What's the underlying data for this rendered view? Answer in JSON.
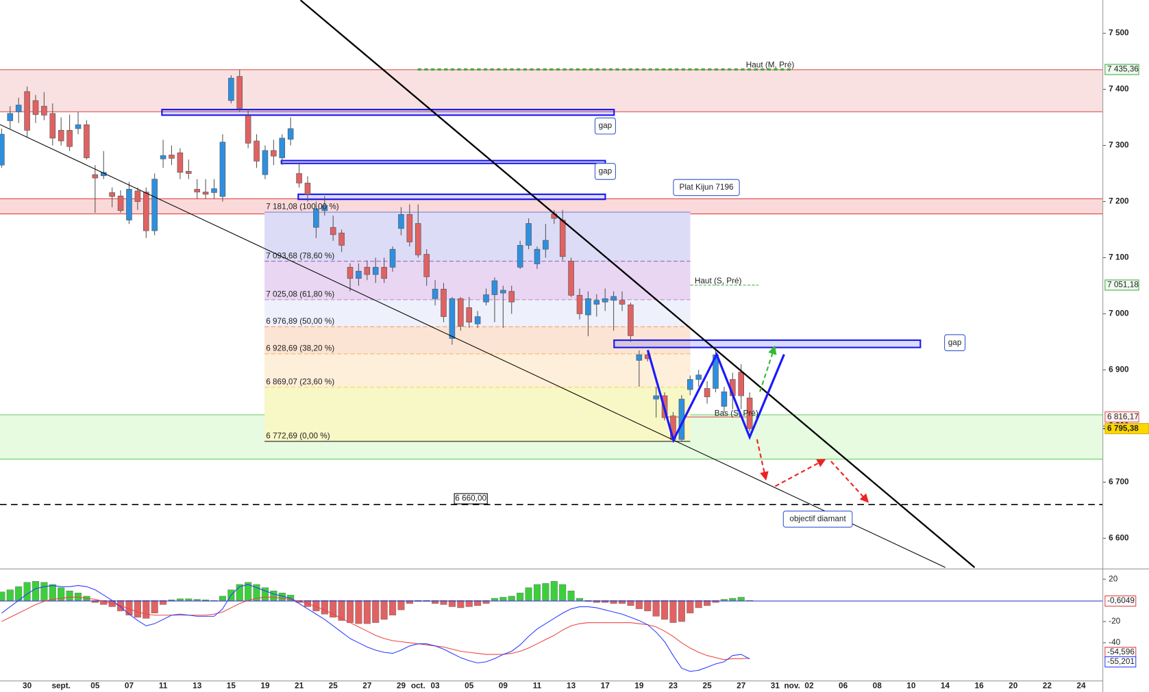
{
  "chart_data": {
    "type": "candlestick",
    "categories": [
      null,
      null,
      null,
      "30",
      null,
      null,
      null,
      "sept.",
      null,
      null,
      null,
      "05",
      null,
      null,
      null,
      "07",
      null,
      null,
      null,
      "11",
      null,
      null,
      null,
      "13",
      null,
      null,
      null,
      "15",
      null,
      null,
      null,
      "19",
      null,
      null,
      null,
      "21",
      null,
      null,
      null,
      "25",
      null,
      null,
      null,
      "27",
      null,
      null,
      null,
      "29",
      null,
      "oct.",
      null,
      "03",
      null,
      null,
      null,
      "05",
      null,
      null,
      null,
      "09",
      null,
      null,
      null,
      "11",
      null,
      null,
      null,
      "13",
      null,
      null,
      null,
      "17",
      null,
      null,
      null,
      "19",
      null,
      null,
      null,
      "23",
      null,
      null,
      null,
      "25",
      null,
      null,
      null,
      "27",
      null,
      null,
      null,
      "31",
      null,
      "nov.",
      null,
      "02",
      null,
      null,
      null,
      "06",
      null,
      null,
      null,
      "08",
      null,
      null,
      null,
      "10",
      null,
      null,
      null,
      "14",
      null,
      null,
      null,
      "16",
      null,
      null,
      null,
      "20",
      null,
      null,
      null,
      "22",
      null,
      null,
      null,
      "24",
      null,
      null
    ],
    "open": [
      7265,
      7344,
      7360,
      7396,
      7380,
      7370,
      7357,
      7327,
      7327,
      7330,
      7337,
      7248,
      7246,
      7216,
      7210,
      7167,
      7219,
      7217,
      7148,
      7276,
      7283,
      7287,
      7254,
      7222,
      7217,
      7216,
      7209,
      7380,
      7423,
      7353,
      7308,
      7248,
      7291,
      7278,
      7311,
      7250,
      7233,
      7154,
      7184,
      7154,
      7144,
      7083,
      7063,
      7083,
      7070,
      7083,
      7083,
      7152,
      7177,
      7161,
      7106,
      7027,
      7044,
      6956,
      7027,
      7011,
      6982,
      7021,
      7034,
      7037,
      7040,
      7083,
      7122,
      7089,
      7115,
      7178,
      7167,
      7094,
      7033,
      6998,
      7017,
      7021,
      7024,
      7024,
      7016,
      6917,
      6927,
      6848,
      6854,
      6818,
      6776,
      6865,
      6883,
      6867,
      6867,
      6835,
      6883,
      6896,
      6850,
      null,
      null,
      null,
      null,
      null,
      null,
      null,
      null,
      null,
      null,
      null,
      null,
      null,
      null,
      null,
      null,
      null,
      null,
      null,
      null,
      null,
      null,
      null,
      null,
      null,
      null,
      null,
      null,
      null,
      null,
      null,
      null,
      null,
      null,
      null,
      null,
      null,
      null,
      null,
      null,
      null
    ],
    "high": [
      7330,
      7370,
      7385,
      7405,
      7390,
      7395,
      7375,
      7350,
      7355,
      7360,
      7345,
      7265,
      7290,
      7225,
      7220,
      7235,
      7225,
      7225,
      7250,
      7310,
      7300,
      7295,
      7275,
      7240,
      7240,
      7240,
      7320,
      7425,
      7435,
      7365,
      7320,
      7300,
      7310,
      7320,
      7350,
      7270,
      7245,
      7200,
      7210,
      7175,
      7150,
      7090,
      7090,
      7095,
      7100,
      7100,
      7120,
      7190,
      7195,
      7195,
      7115,
      7060,
      7055,
      7030,
      7030,
      7030,
      7005,
      7045,
      7065,
      7050,
      7050,
      7130,
      7170,
      7120,
      7160,
      7185,
      7185,
      7100,
      7045,
      7040,
      7035,
      7045,
      7040,
      7040,
      7020,
      6935,
      6935,
      6870,
      6860,
      6825,
      6855,
      6890,
      6900,
      6880,
      6935,
      6870,
      6895,
      6910,
      6860,
      null,
      null,
      null,
      null,
      null,
      null,
      null,
      null,
      null,
      null,
      null,
      null,
      null,
      null,
      null,
      null,
      null,
      null,
      null,
      null,
      null,
      null,
      null,
      null,
      null,
      null,
      null,
      null,
      null,
      null,
      null,
      null,
      null,
      null,
      null,
      null,
      null,
      null,
      null,
      null,
      null
    ],
    "low": [
      7260,
      7330,
      7340,
      7315,
      7340,
      7345,
      7300,
      7300,
      7290,
      7320,
      7275,
      7180,
      7240,
      7190,
      7180,
      7160,
      7185,
      7135,
      7140,
      7260,
      7265,
      7240,
      7240,
      7205,
      7205,
      7205,
      7200,
      7375,
      7360,
      7295,
      7260,
      7240,
      7265,
      7265,
      7300,
      7225,
      7200,
      7135,
      7175,
      7130,
      7110,
      7040,
      7050,
      7060,
      7055,
      7055,
      7075,
      7140,
      7120,
      7100,
      7050,
      7015,
      6985,
      6945,
      6970,
      6975,
      6975,
      7015,
      6985,
      6975,
      7000,
      7080,
      7115,
      7080,
      7100,
      7160,
      7095,
      7030,
      6990,
      6960,
      6995,
      7005,
      6970,
      7005,
      6950,
      6870,
      6915,
      6815,
      6810,
      6773,
      6773,
      6855,
      6870,
      6840,
      6860,
      6825,
      6830,
      6830,
      6790,
      null,
      null,
      null,
      null,
      null,
      null,
      null,
      null,
      null,
      null,
      null,
      null,
      null,
      null,
      null,
      null,
      null,
      null,
      null,
      null,
      null,
      null,
      null,
      null,
      null,
      null,
      null,
      null,
      null,
      null,
      null,
      null,
      null,
      null,
      null,
      null,
      null,
      null,
      null,
      null,
      null
    ],
    "close": [
      7320,
      7357,
      7372,
      7327,
      7355,
      7354,
      7313,
      7308,
      7298,
      7337,
      7278,
      7242,
      7252,
      7209,
      7184,
      7222,
      7200,
      7148,
      7240,
      7282,
      7277,
      7252,
      7250,
      7217,
      7213,
      7223,
      7306,
      7420,
      7366,
      7304,
      7272,
      7291,
      7281,
      7313,
      7330,
      7233,
      7213,
      7187,
      7193,
      7141,
      7122,
      7063,
      7076,
      7070,
      7083,
      7063,
      7115,
      7177,
      7128,
      7105,
      7066,
      7044,
      6995,
      7027,
      6978,
      6985,
      6995,
      7034,
      7059,
      7042,
      7021,
      7122,
      7161,
      7115,
      7131,
      7170,
      7102,
      7033,
      7000,
      7027,
      7024,
      7027,
      7031,
      7017,
      6961,
      6927,
      6920,
      6854,
      6815,
      6776,
      6848,
      6883,
      6891,
      6852,
      6927,
      6861,
      6854,
      6854,
      6795.38,
      null,
      null,
      null,
      null,
      null,
      null,
      null,
      null,
      null,
      null,
      null,
      null,
      null,
      null,
      null,
      null,
      null,
      null,
      null,
      null,
      null,
      null,
      null,
      null,
      null,
      null,
      null,
      null,
      null,
      null,
      null,
      null,
      null,
      null,
      null,
      null,
      null,
      null,
      null,
      null,
      null
    ],
    "up_color": "#2f8fdf",
    "down_color": "#e06262",
    "ylim": [
      6548,
      7559
    ],
    "yticks": [
      {
        "value": 6600,
        "label": "6 600"
      },
      {
        "value": 6700,
        "label": "6 700"
      },
      {
        "value": 6800,
        "label": "6 800"
      },
      {
        "value": 6900,
        "label": "6 900"
      },
      {
        "value": 7000,
        "label": "7 000"
      },
      {
        "value": 7100,
        "label": "7 100"
      },
      {
        "value": 7200,
        "label": "7 200"
      },
      {
        "value": 7300,
        "label": "7 300"
      },
      {
        "value": 7400,
        "label": "7 400"
      },
      {
        "value": 7500,
        "label": "7 500"
      }
    ],
    "last_price": {
      "value": 6795.38,
      "label": "6 795,38"
    },
    "zones": [
      {
        "from": 7360,
        "to": 7435,
        "fill": "#f9e1e1",
        "edge": "#e05555"
      },
      {
        "from": 7178,
        "to": 7205,
        "fill": "#f9d9d9",
        "edge": "#e03333"
      },
      {
        "from": 6741,
        "to": 6820,
        "fill": "#e6fbe0",
        "edge": "#66cc66"
      }
    ],
    "fibonacci": [
      {
        "value": 7181.08,
        "label": "7 181,08 (100,00 %)",
        "color": "#7777dd",
        "fill": "#dcdcf6"
      },
      {
        "value": 7093.68,
        "label": "7 093,68 (78,60 %)",
        "color": "#9955bb",
        "fill": "#e9d6f2"
      },
      {
        "value": 7025.08,
        "label": "7 025,08 (61,80 %)",
        "color": "#bb88cc",
        "fill": "#eef0fb"
      },
      {
        "value": 6976.89,
        "label": "6 976,89 (50,00 %)",
        "color": "#ee9966",
        "fill": "#fce4d4"
      },
      {
        "value": 6928.69,
        "label": "6 928,69 (38,20 %)",
        "color": "#eebb66",
        "fill": "#fdefd9"
      },
      {
        "value": 6869.07,
        "label": "6 869,07 (23,60 %)",
        "color": "#eedd55",
        "fill": "#f8f7c6"
      },
      {
        "value": 6772.69,
        "label": "6 772,69 (0,00 %)",
        "color": "#222222"
      }
    ],
    "levels": [
      {
        "name": "Haut (M, Pré)",
        "value": 7435.36,
        "label": "7 435,36",
        "color": "#44aa44"
      },
      {
        "name": "Haut (S, Pré)",
        "value": 7051.18,
        "label": "7 051,18",
        "color": "#44aa44"
      },
      {
        "name": "Bas (S, Pré)",
        "value": 6816.17,
        "label": "6 816,17",
        "color": "#dd5555"
      }
    ],
    "gaps": [
      {
        "from": 7354,
        "to": 7364,
        "label": "gap"
      },
      {
        "from": 7268,
        "to": 7273,
        "label": "gap"
      },
      {
        "from": 7204,
        "to": 7213
      },
      {
        "from": 6940,
        "to": 6953,
        "label": "gap"
      }
    ],
    "support": {
      "value": 6660,
      "label": "6 660,00"
    },
    "annotations": [
      "Plat Kijun 7196",
      "objectif diamant"
    ],
    "indicator": {
      "type": "macd",
      "histogram": [
        8,
        10,
        13,
        17,
        18,
        17,
        15,
        12,
        9,
        7,
        4,
        -2,
        -4,
        -6,
        -10,
        -14,
        -16,
        -17,
        -12,
        -4,
        0.5,
        1.5,
        1.5,
        1,
        0.5,
        0,
        4,
        10,
        15,
        17,
        15,
        12,
        9,
        7,
        5,
        -2,
        -6,
        -10,
        -13,
        -16,
        -19,
        -21,
        -22,
        -22,
        -21,
        -18,
        -14,
        -9,
        -3,
        -1,
        -1,
        -3,
        -4,
        -6,
        -7,
        -6,
        -5,
        -3,
        2,
        3,
        4,
        7,
        12,
        15,
        16,
        18,
        15,
        9,
        2,
        -1,
        -2,
        -2,
        -3,
        -3,
        -5,
        -8,
        -10,
        -15,
        -18,
        -21,
        -20,
        -12,
        -7,
        -5,
        -2,
        1,
        2,
        3,
        -0.6049,
        null,
        null,
        null,
        null,
        null,
        null,
        null,
        null,
        null,
        null,
        null,
        null,
        null,
        null,
        null,
        null,
        null,
        null,
        null,
        null,
        null,
        null,
        null,
        null,
        null,
        null,
        null,
        null,
        null,
        null,
        null,
        null,
        null,
        null,
        null,
        null,
        null,
        null,
        null,
        null,
        null
      ],
      "macd": [
        -12,
        -6,
        0,
        6,
        11,
        13,
        14,
        13,
        13,
        14,
        13,
        10,
        5,
        0,
        -6,
        -13,
        -19,
        -24,
        -22,
        -18,
        -14,
        -13,
        -14,
        -15,
        -15,
        -15,
        -8,
        5,
        13,
        15,
        12,
        9,
        6,
        4,
        2,
        -3,
        -8,
        -13,
        -18,
        -24,
        -30,
        -36,
        -40,
        -44,
        -47,
        -49,
        -50,
        -47,
        -43,
        -41,
        -41,
        -43,
        -46,
        -50,
        -54,
        -57,
        -59,
        -58,
        -55,
        -51,
        -48,
        -42,
        -34,
        -27,
        -22,
        -17,
        -12,
        -8,
        -6,
        -6,
        -7,
        -9,
        -11,
        -13,
        -16,
        -19,
        -23,
        -30,
        -39,
        -52,
        -64,
        -67,
        -66,
        -63,
        -60,
        -58,
        -52,
        -51,
        -55.201,
        null,
        null,
        null,
        null,
        null,
        null,
        null,
        null,
        null,
        null,
        null,
        null,
        null,
        null,
        null,
        null,
        null,
        null,
        null,
        null,
        null,
        null,
        null,
        null,
        null,
        null,
        null,
        null,
        null,
        null,
        null,
        null,
        null,
        null,
        null,
        null,
        null,
        null,
        null,
        null,
        null
      ],
      "signal": [
        -20,
        -16,
        -12,
        -8,
        -4,
        -1,
        1,
        2,
        3,
        3,
        2,
        1,
        -1,
        -3,
        -5,
        -8,
        -11,
        -13,
        -14,
        -14,
        -14,
        -14,
        -14,
        -14,
        -14,
        -13,
        -11,
        -7,
        -3,
        0,
        2,
        3,
        3,
        2,
        1,
        -1,
        -3,
        -6,
        -9,
        -13,
        -17,
        -21,
        -25,
        -29,
        -33,
        -36,
        -38,
        -39,
        -40,
        -41,
        -42,
        -43,
        -44,
        -46,
        -48,
        -49,
        -50,
        -51,
        -51,
        -51,
        -50,
        -48,
        -45,
        -41,
        -37,
        -33,
        -28,
        -24,
        -22,
        -21,
        -21,
        -21,
        -21,
        -21,
        -21,
        -22,
        -23,
        -25,
        -29,
        -34,
        -40,
        -45,
        -49,
        -52,
        -54,
        -56,
        -55,
        -55,
        -54.596,
        null,
        null,
        null,
        null,
        null,
        null,
        null,
        null,
        null,
        null,
        null,
        null,
        null,
        null,
        null,
        null,
        null,
        null,
        null,
        null,
        null,
        null,
        null,
        null,
        null,
        null,
        null,
        null,
        null,
        null,
        null,
        null,
        null,
        null,
        null,
        null,
        null,
        null,
        null,
        null,
        null
      ],
      "up_color": "#3ccf3c",
      "down_color": "#e06262",
      "macd_color": "#2a3cff",
      "signal_color": "#ee4444",
      "ylim": [
        -76,
        29
      ],
      "yticks": [
        20,
        -20,
        -40
      ],
      "last_values": [
        {
          "value": -0.6049,
          "label": "-0,6049",
          "color": "#dd4444"
        },
        {
          "value": -54.596,
          "label": "-54,596",
          "color": "#dd4444"
        },
        {
          "value": -55.201,
          "label": "-55,201",
          "color": "#2a3cff"
        }
      ]
    }
  }
}
